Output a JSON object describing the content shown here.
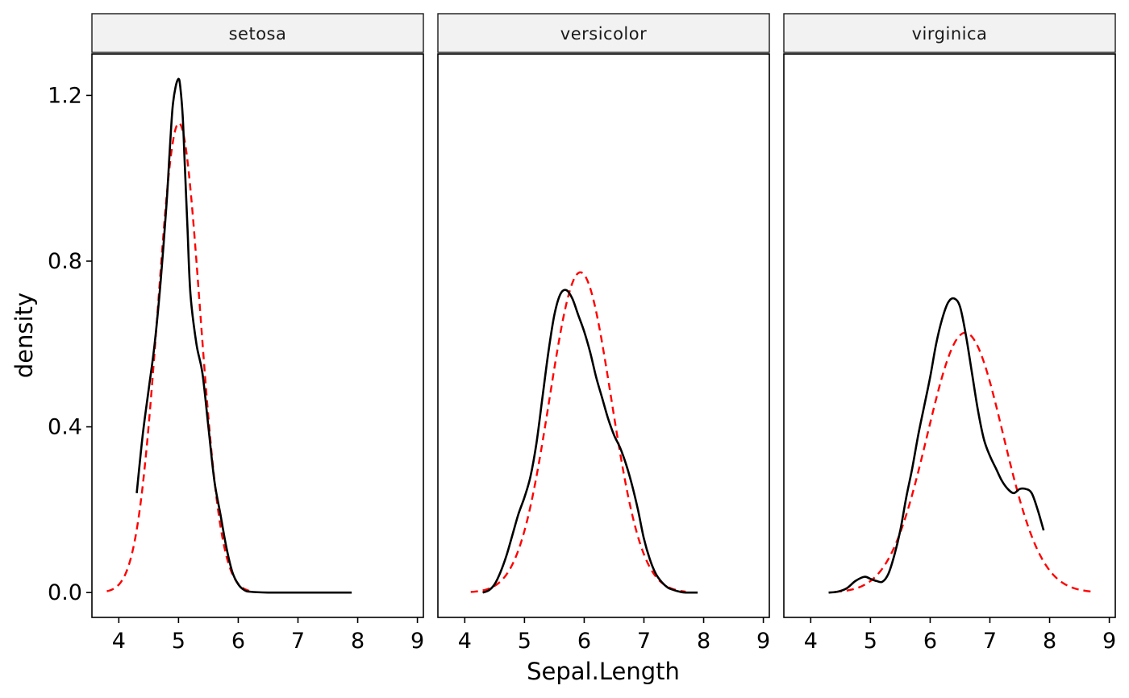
{
  "chart_data": {
    "type": "line",
    "xlabel": "Sepal.Length",
    "ylabel": "density",
    "xlim": [
      3.55,
      9.1
    ],
    "ylim": [
      -0.06,
      1.3
    ],
    "x_ticks": [
      4,
      5,
      6,
      7,
      8,
      9
    ],
    "y_ticks": [
      0.0,
      0.4,
      0.8,
      1.2
    ],
    "y_tick_labels": [
      "0.0",
      "0.4",
      "0.8",
      "1.2"
    ],
    "grid": false,
    "colors": {
      "empirical": "#000000",
      "normal": "#ff0000"
    },
    "panels": [
      {
        "label": "setosa",
        "empirical": {
          "x": [
            4.3,
            4.4,
            4.5,
            4.6,
            4.7,
            4.8,
            4.85,
            4.9,
            4.95,
            5.0,
            5.03,
            5.07,
            5.1,
            5.15,
            5.2,
            5.3,
            5.4,
            5.5,
            5.6,
            5.7,
            5.8,
            5.9,
            6.0,
            6.1,
            6.2,
            6.5,
            7.0,
            7.5,
            7.9
          ],
          "y": [
            0.24,
            0.38,
            0.49,
            0.6,
            0.75,
            0.94,
            1.06,
            1.17,
            1.22,
            1.24,
            1.22,
            1.15,
            1.05,
            0.88,
            0.72,
            0.6,
            0.53,
            0.4,
            0.27,
            0.19,
            0.11,
            0.05,
            0.02,
            0.006,
            0.002,
            0.0,
            0.0,
            0.0,
            0.0
          ]
        },
        "normal": {
          "mean": 5.006,
          "sd": 0.352,
          "x_range": [
            3.8,
            6.2
          ]
        }
      },
      {
        "label": "versicolor",
        "empirical": {
          "x": [
            4.3,
            4.4,
            4.5,
            4.6,
            4.7,
            4.8,
            4.9,
            5.0,
            5.1,
            5.2,
            5.3,
            5.4,
            5.5,
            5.6,
            5.7,
            5.8,
            5.9,
            6.0,
            6.1,
            6.2,
            6.3,
            6.4,
            6.5,
            6.6,
            6.7,
            6.8,
            6.9,
            7.0,
            7.1,
            7.2,
            7.3,
            7.4,
            7.5,
            7.6,
            7.7,
            7.9
          ],
          "y": [
            0.0,
            0.005,
            0.02,
            0.05,
            0.09,
            0.14,
            0.19,
            0.23,
            0.28,
            0.36,
            0.47,
            0.58,
            0.67,
            0.72,
            0.73,
            0.71,
            0.67,
            0.63,
            0.58,
            0.52,
            0.47,
            0.42,
            0.38,
            0.35,
            0.31,
            0.26,
            0.2,
            0.13,
            0.08,
            0.045,
            0.025,
            0.012,
            0.006,
            0.002,
            0.0,
            0.0
          ]
        },
        "normal": {
          "mean": 5.936,
          "sd": 0.516,
          "x_range": [
            4.1,
            7.7
          ]
        }
      },
      {
        "label": "virginica",
        "empirical": {
          "x": [
            4.3,
            4.45,
            4.6,
            4.75,
            4.9,
            5.0,
            5.1,
            5.2,
            5.3,
            5.4,
            5.5,
            5.6,
            5.7,
            5.8,
            5.9,
            6.0,
            6.1,
            6.2,
            6.3,
            6.4,
            6.5,
            6.6,
            6.7,
            6.8,
            6.9,
            7.0,
            7.1,
            7.2,
            7.3,
            7.4,
            7.5,
            7.6,
            7.7,
            7.8,
            7.9
          ],
          "y": [
            0.0,
            0.002,
            0.01,
            0.028,
            0.038,
            0.033,
            0.028,
            0.026,
            0.045,
            0.09,
            0.15,
            0.23,
            0.3,
            0.38,
            0.45,
            0.52,
            0.6,
            0.66,
            0.7,
            0.71,
            0.69,
            0.62,
            0.53,
            0.44,
            0.37,
            0.33,
            0.3,
            0.27,
            0.25,
            0.24,
            0.25,
            0.25,
            0.24,
            0.2,
            0.15
          ]
        },
        "normal": {
          "mean": 6.588,
          "sd": 0.636,
          "x_range": [
            4.4,
            8.75
          ]
        }
      }
    ]
  }
}
